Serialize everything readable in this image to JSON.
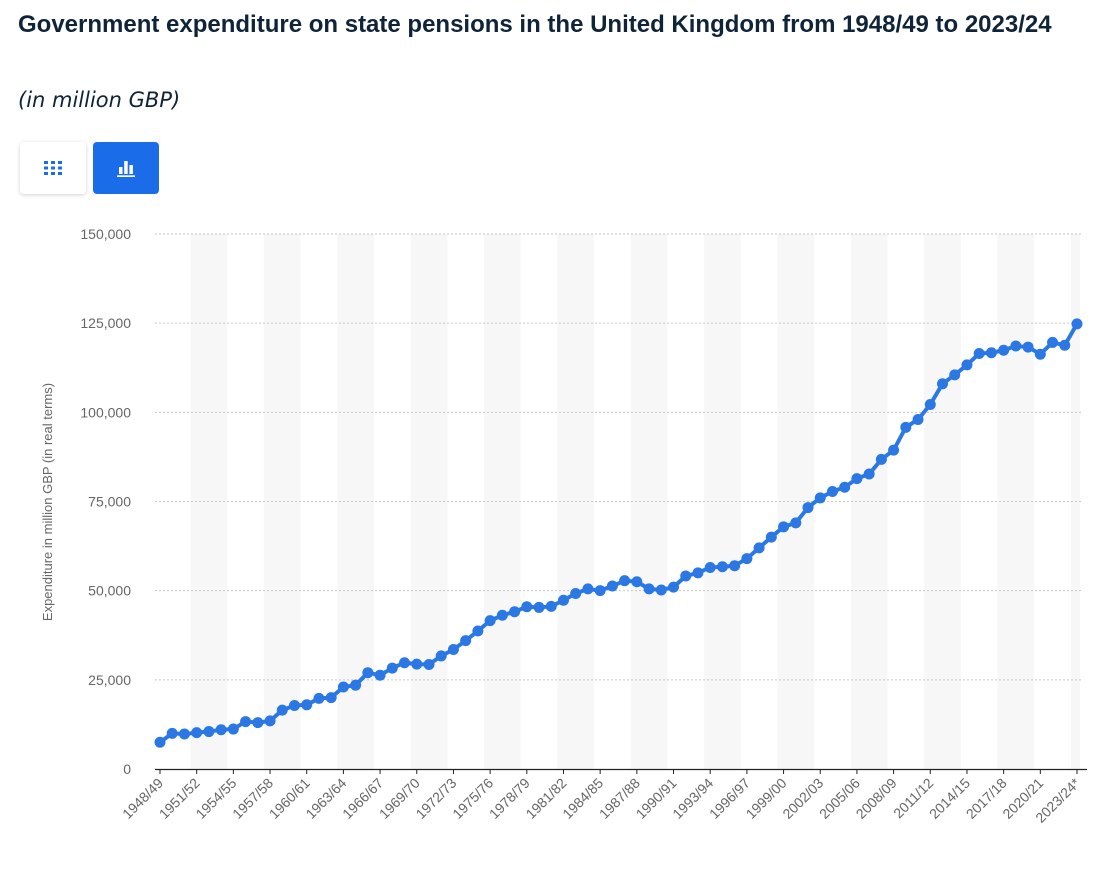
{
  "header": {
    "title": "Government expenditure on state pensions in the United Kingdom from 1948/49 to 2023/24",
    "subtitle": "(in million GBP)"
  },
  "toolbar": {
    "table_icon": "grid-icon",
    "chart_icon": "bar-chart-icon",
    "accent_color": "#1a6ce8"
  },
  "chart_data": {
    "type": "line",
    "ylabel": "Expenditure in million GBP (in real terms)",
    "ylim": [
      0,
      150000
    ],
    "yticks": [
      0,
      25000,
      50000,
      75000,
      100000,
      125000,
      150000
    ],
    "ytick_labels": [
      "0",
      "25,000",
      "50,000",
      "75,000",
      "100,000",
      "125,000",
      "150,000"
    ],
    "grid": true,
    "series_color": "#2b78e4",
    "x": [
      "1948/49",
      "1949/50",
      "1950/51",
      "1951/52",
      "1952/53",
      "1953/54",
      "1954/55",
      "1955/56",
      "1956/57",
      "1957/58",
      "1958/59",
      "1959/60",
      "1960/61",
      "1961/62",
      "1962/63",
      "1963/64",
      "1964/65",
      "1965/66",
      "1966/67",
      "1967/68",
      "1968/69",
      "1969/70",
      "1970/71",
      "1971/72",
      "1972/73",
      "1973/74",
      "1974/75",
      "1975/76",
      "1976/77",
      "1977/78",
      "1978/79",
      "1979/80",
      "1980/81",
      "1981/82",
      "1982/83",
      "1983/84",
      "1984/85",
      "1985/86",
      "1986/87",
      "1987/88",
      "1988/89",
      "1989/90",
      "1990/91",
      "1991/92",
      "1992/93",
      "1993/94",
      "1994/95",
      "1995/96",
      "1996/97",
      "1997/98",
      "1998/99",
      "1999/00",
      "2000/01",
      "2001/02",
      "2002/03",
      "2003/04",
      "2004/05",
      "2005/06",
      "2006/07",
      "2007/08",
      "2008/09",
      "2009/10",
      "2010/11",
      "2011/12",
      "2012/13",
      "2013/14",
      "2014/15",
      "2015/16",
      "2016/17",
      "2017/18",
      "2018/19",
      "2019/20",
      "2020/21",
      "2021/22",
      "2022/23",
      "2023/24*"
    ],
    "x_tick_labels": [
      "1948/49",
      "1951/52",
      "1954/55",
      "1957/58",
      "1960/61",
      "1963/64",
      "1966/67",
      "1969/70",
      "1972/73",
      "1975/76",
      "1978/79",
      "1981/82",
      "1984/85",
      "1987/88",
      "1990/91",
      "1993/94",
      "1996/97",
      "1999/00",
      "2002/03",
      "2005/06",
      "2008/09",
      "2011/12",
      "2014/15",
      "2017/18",
      "2020/21",
      "2023/24*"
    ],
    "values": [
      7500,
      10000,
      9800,
      10200,
      10500,
      11000,
      11200,
      13300,
      13000,
      13500,
      16500,
      17800,
      18000,
      19800,
      20000,
      23000,
      23500,
      27000,
      26300,
      28300,
      29800,
      29400,
      29300,
      31700,
      33500,
      36000,
      38700,
      41600,
      43100,
      44100,
      45500,
      45300,
      45600,
      47300,
      49200,
      50500,
      50000,
      51300,
      52800,
      52500,
      50500,
      50200,
      51000,
      54100,
      55000,
      56500,
      56700,
      57000,
      59000,
      62000,
      65000,
      67900,
      69000,
      73300,
      76000,
      77800,
      79000,
      81400,
      82700,
      86800,
      89400,
      95800,
      98000,
      102200,
      108000,
      110500,
      113300,
      116500,
      116700,
      117400,
      118600,
      118300,
      116300,
      119600,
      118800,
      124800
    ]
  }
}
